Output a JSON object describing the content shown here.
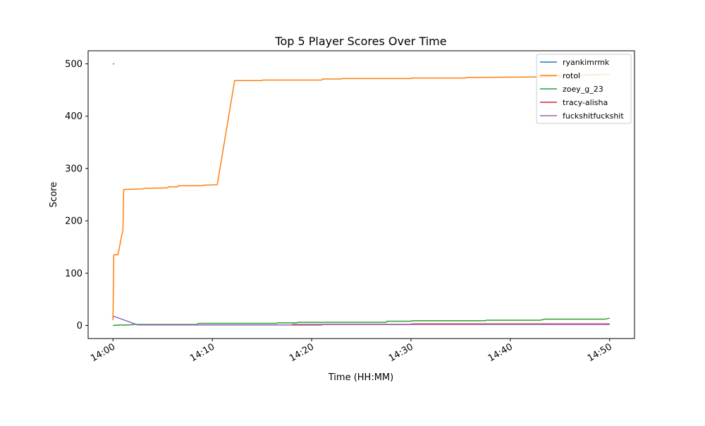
{
  "chart_data": {
    "type": "line",
    "title": "Top 5 Player Scores Over Time",
    "x_label": "Time (HH:MM)",
    "y_label": "Score",
    "xlim": [
      "13:57:30",
      "14:52:30"
    ],
    "xticks": [
      "14:00",
      "14:10",
      "14:20",
      "14:30",
      "14:40",
      "14:50"
    ],
    "ylim": [
      -25,
      525
    ],
    "yticks": [
      0,
      100,
      200,
      300,
      400,
      500
    ],
    "legend": "upper right",
    "grid": false,
    "series": [
      {
        "name": "ryankimrmk",
        "color": "#1f77b4",
        "x": [
          "14:00:00",
          "14:00:08"
        ],
        "values": [
          500,
          500
        ]
      },
      {
        "name": "rotol",
        "color": "#ff7f0e",
        "x": [
          "14:00:00",
          "14:00:05",
          "14:00:30",
          "14:00:55",
          "14:01:00",
          "14:01:05",
          "14:03:00",
          "14:03:05",
          "14:05:30",
          "14:05:35",
          "14:06:30",
          "14:06:35",
          "14:09:00",
          "14:09:05",
          "14:10:30",
          "14:12:15",
          "14:15:00",
          "14:15:05",
          "14:21:00",
          "14:21:05",
          "14:23:00",
          "14:23:05",
          "14:30:00",
          "14:30:05",
          "14:35:30",
          "14:35:35",
          "14:43:00",
          "14:46:00",
          "14:50:00"
        ],
        "values": [
          10,
          135,
          135,
          175,
          180,
          260,
          261,
          262,
          263,
          265,
          265,
          267,
          267,
          268,
          269,
          468,
          468,
          469,
          469,
          471,
          471,
          472,
          472,
          473,
          473,
          474,
          475,
          478,
          480
        ]
      },
      {
        "name": "zoey_g_23",
        "color": "#2ca02c",
        "x": [
          "14:00:00",
          "14:00:40",
          "14:01:30",
          "14:02:10",
          "14:08:30",
          "14:08:35",
          "14:16:30",
          "14:16:35",
          "14:18:30",
          "14:18:35",
          "14:27:30",
          "14:27:35",
          "14:30:00",
          "14:30:05",
          "14:37:30",
          "14:37:35",
          "14:43:00",
          "14:43:30",
          "14:49:30",
          "14:50:00"
        ],
        "values": [
          0,
          1,
          1,
          2,
          2,
          4,
          4,
          5,
          5,
          6,
          6,
          8,
          8,
          9,
          9,
          10,
          10,
          12,
          12,
          14
        ]
      },
      {
        "name": "tracy-alisha",
        "color": "#d62728",
        "x": [
          "14:02:30",
          "14:21:00",
          "14:21:05",
          "14:30:00",
          "14:30:05",
          "14:50:00"
        ],
        "values": [
          1,
          1,
          2,
          2,
          3,
          3
        ]
      },
      {
        "name": "fuckshitfuckshit",
        "color": "#9467bd",
        "x": [
          "14:00:00",
          "14:02:30",
          "14:18:00",
          "14:18:05",
          "14:50:00"
        ],
        "values": [
          18,
          1,
          1,
          2,
          2
        ]
      }
    ]
  }
}
